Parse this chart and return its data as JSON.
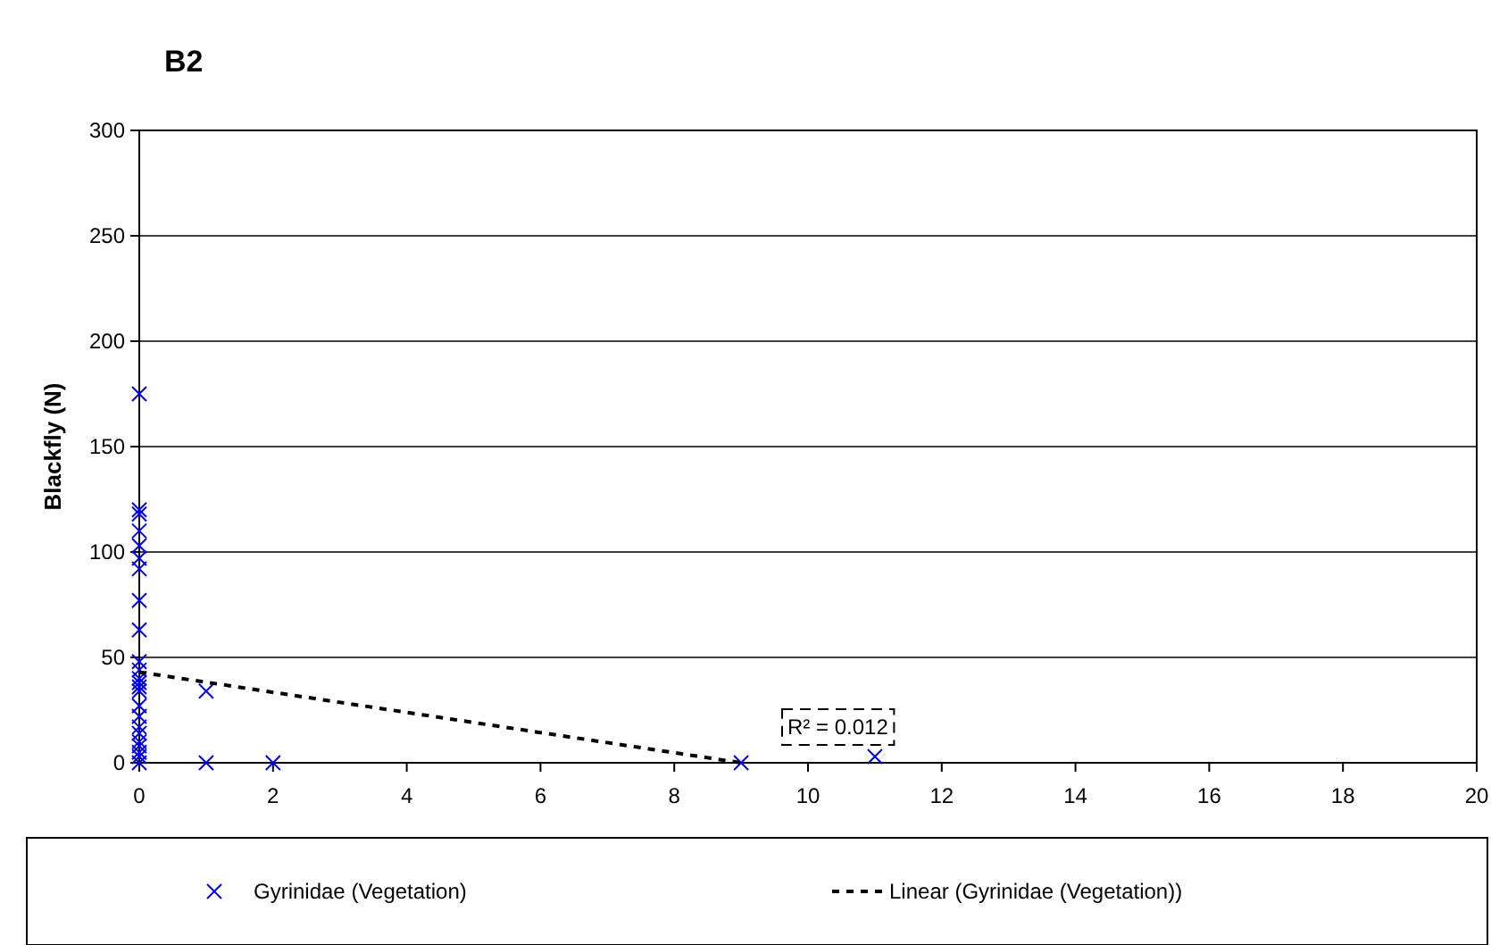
{
  "chart_data": {
    "type": "scatter",
    "title": "B2",
    "ylabel": "Blackfly (N)",
    "xlim": [
      0,
      20
    ],
    "xticks": [
      0,
      2,
      4,
      6,
      8,
      10,
      12,
      14,
      16,
      18,
      20
    ],
    "ylim": [
      0,
      300
    ],
    "yticks": [
      0,
      50,
      100,
      150,
      200,
      250,
      300
    ],
    "grid": "y",
    "legend": "bottom",
    "annotations": [
      "R² = 0.012"
    ],
    "series": [
      {
        "name": "Gyrinidae (Vegetation)",
        "color": "#0000ff",
        "marker": "cross",
        "x": [
          0,
          0,
          0,
          0,
          0,
          0,
          0,
          0,
          0,
          0,
          0,
          0,
          0,
          0,
          0,
          0,
          0,
          0,
          0,
          0,
          0,
          0,
          0,
          0,
          1,
          1,
          2,
          9,
          11
        ],
        "values": [
          175,
          120,
          118,
          110,
          103,
          97,
          92,
          77,
          63,
          48,
          44,
          40,
          38,
          36,
          34,
          27,
          22,
          17,
          14,
          10,
          8,
          5,
          3,
          0,
          34,
          0,
          0,
          0,
          3
        ]
      },
      {
        "name": "Linear (Gyrinidae (Vegetation))",
        "type": "line",
        "color": "#000000",
        "line_style": "dashed",
        "x": [
          0,
          9
        ],
        "values": [
          43,
          0
        ]
      }
    ]
  }
}
